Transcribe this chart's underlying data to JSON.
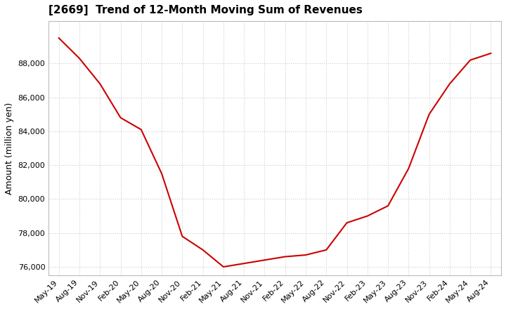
{
  "title": "[2669]  Trend of 12-Month Moving Sum of Revenues",
  "ylabel": "Amount (million yen)",
  "xlabel": "",
  "background_color": "#ffffff",
  "plot_bg_color": "#ffffff",
  "grid_color": "#cccccc",
  "line_color": "#cc0000",
  "line_width": 1.5,
  "ylim": [
    75500,
    90500
  ],
  "yticks": [
    76000,
    78000,
    80000,
    82000,
    84000,
    86000,
    88000
  ],
  "x_labels": [
    "May-19",
    "Aug-19",
    "Nov-19",
    "Feb-20",
    "May-20",
    "Aug-20",
    "Nov-20",
    "Feb-21",
    "May-21",
    "Aug-21",
    "Nov-21",
    "Feb-22",
    "May-22",
    "Aug-22",
    "Nov-22",
    "Feb-23",
    "May-23",
    "Aug-23",
    "Nov-23",
    "Feb-24",
    "May-24",
    "Aug-24"
  ],
  "values": [
    89500,
    88300,
    86800,
    84800,
    84100,
    81500,
    77800,
    77000,
    76000,
    76200,
    76400,
    76600,
    76700,
    77000,
    78600,
    79000,
    79600,
    81800,
    85000,
    86800,
    88200,
    88600
  ],
  "title_fontsize": 11,
  "tick_fontsize": 8,
  "ylabel_fontsize": 9
}
